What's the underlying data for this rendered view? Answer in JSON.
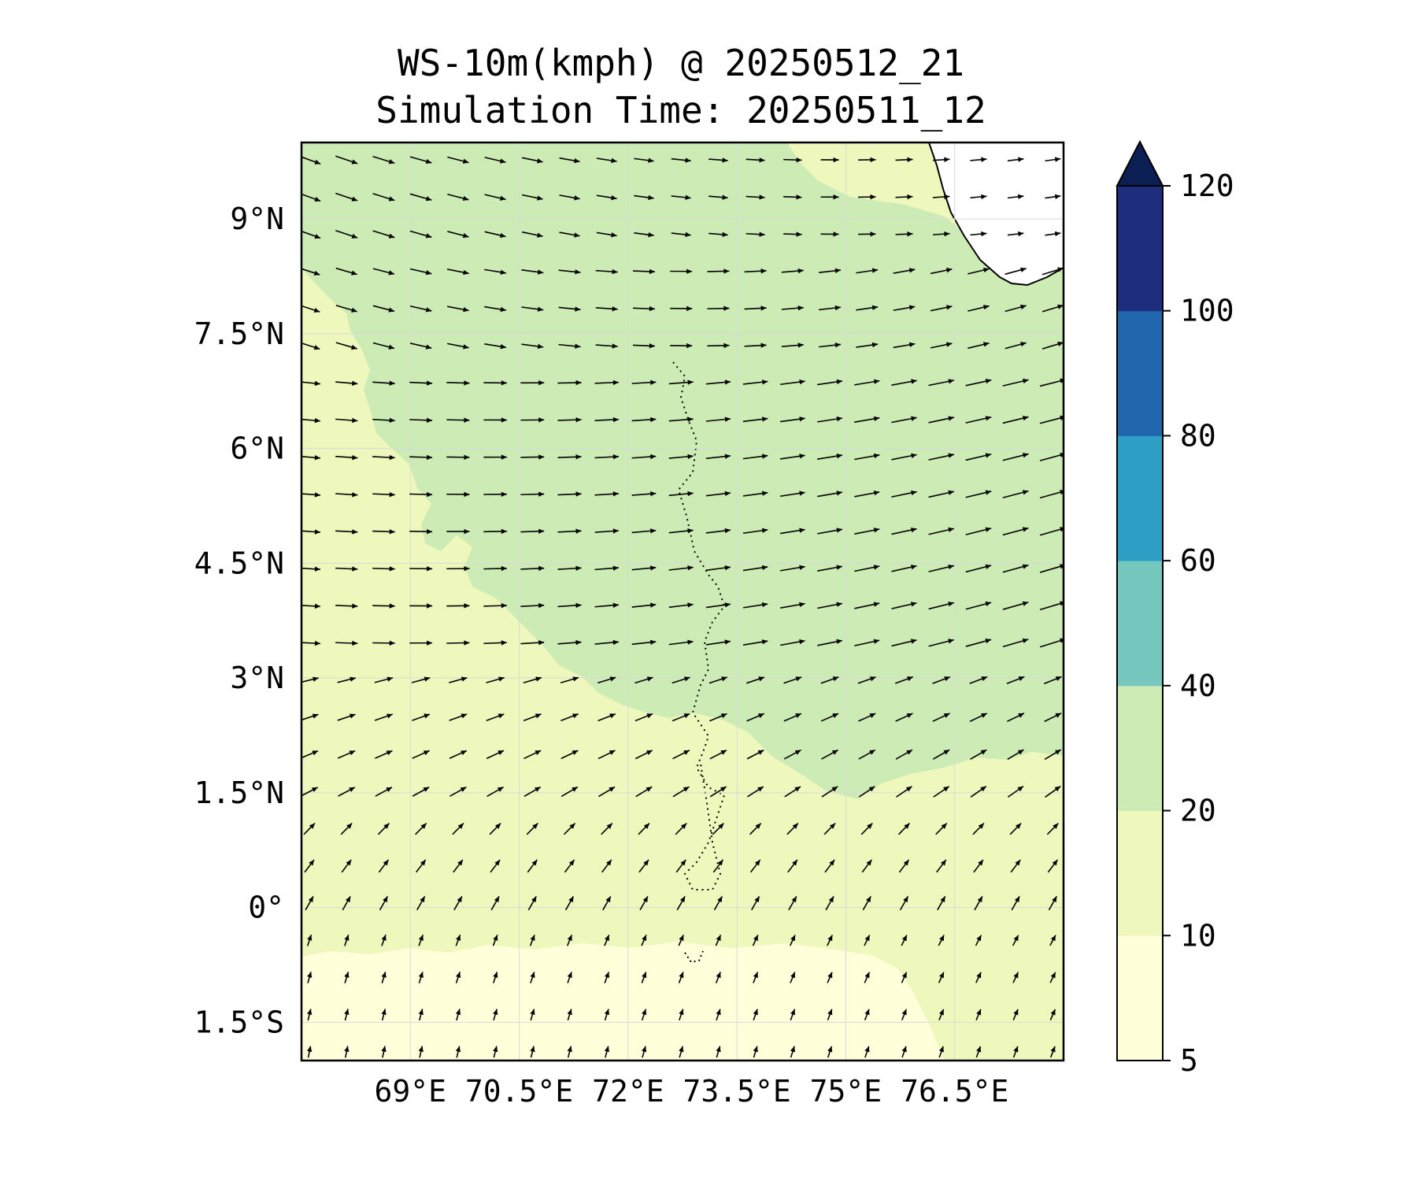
{
  "title": {
    "line1": "WS-10m(kmph) @ 20250512_21",
    "line2": "Simulation Time: 20250511_12"
  },
  "map": {
    "lon_range": [
      67.5,
      78.0
    ],
    "lat_range": [
      -2.0,
      10.0
    ],
    "lon_ticks": [
      "69°E",
      "70.5°E",
      "72°E",
      "73.5°E",
      "75°E",
      "76.5°E"
    ],
    "lon_tick_values": [
      69.0,
      70.5,
      72.0,
      73.5,
      75.0,
      76.5
    ],
    "lat_ticks": [
      "9°N",
      "7.5°N",
      "6°N",
      "4.5°N",
      "3°N",
      "1.5°N",
      "0°",
      "1.5°S"
    ],
    "lat_tick_values": [
      9.0,
      7.5,
      6.0,
      4.5,
      3.0,
      1.5,
      0.0,
      -1.5
    ],
    "gridlines": true
  },
  "colorbar": {
    "labels": [
      "5",
      "10",
      "20",
      "40",
      "60",
      "80",
      "100",
      "120"
    ],
    "bins": [
      {
        "from": 5,
        "to": 10,
        "color": "#ffffd9"
      },
      {
        "from": 10,
        "to": 20,
        "color": "#eff8bc"
      },
      {
        "from": 20,
        "to": 40,
        "color": "#cdebb5"
      },
      {
        "from": 40,
        "to": 60,
        "color": "#76c8bf"
      },
      {
        "from": 60,
        "to": 80,
        "color": "#2ea0c6"
      },
      {
        "from": 80,
        "to": 100,
        "color": "#2166ac"
      },
      {
        "from": 100,
        "to": 120,
        "color": "#1e2e7d"
      }
    ],
    "extend_color": "#0b1f55",
    "extend": "max"
  }
}
